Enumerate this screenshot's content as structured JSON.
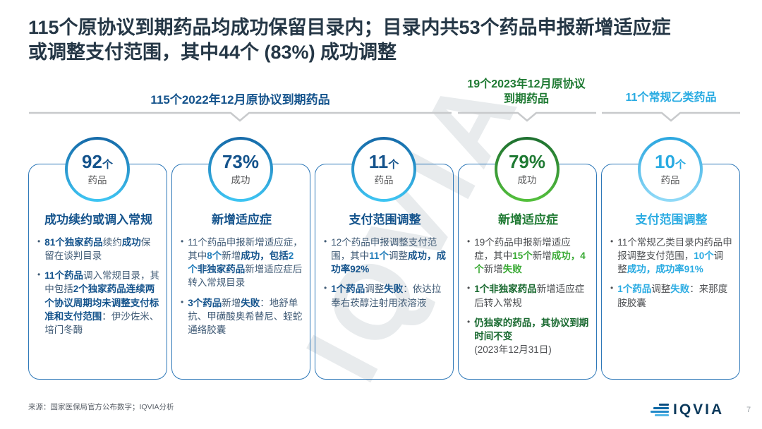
{
  "title": {
    "line1": "115个原协议到期药品均成功保留目录内；目录内共53个药品申报新增适应症",
    "line2": "或调整支付范围，其中44个 (83%) 成功调整",
    "color": "#253746"
  },
  "watermark": "IQVIA",
  "groups": [
    {
      "label_lines": [
        "115个2022年12月原协议到期药品"
      ],
      "color": "#14538c"
    },
    {
      "label_lines": [
        "19个2023年12月原协议",
        "到期药品"
      ],
      "color": "#1f7a33"
    },
    {
      "label_lines": [
        "11个常规乙类药品"
      ],
      "color": "#29abe2"
    }
  ],
  "bracket_line_color": "#c8cacc",
  "cards": [
    {
      "circle": {
        "value": "92",
        "unit": "个",
        "sub": "药品",
        "value_color": "#14538c",
        "ring_top": "#1569a8",
        "ring_bottom": "#3fc6f4"
      },
      "heading": "成功续约或调入常规",
      "heading_color": "#14538c",
      "palette": {
        "n": "#3f5a75",
        "em": "#14538c",
        "num": "#1f7cba",
        "border": "#2e78b8"
      },
      "bullets": [
        [
          {
            "t": "81个独家药品",
            "c": "em"
          },
          {
            "t": "续约",
            "c": "n"
          },
          {
            "t": "成功",
            "c": "em"
          },
          {
            "t": "保留在谈判目录",
            "c": "n"
          }
        ],
        [
          {
            "t": "11个药品",
            "c": "em"
          },
          {
            "t": "调入常规目录，其中包括",
            "c": "n"
          },
          {
            "t": "2个独家药品连续两个协议周期均未调整支付标准和支付范围",
            "c": "em"
          },
          {
            "t": "：伊沙佐米、培门冬酶",
            "c": "n"
          }
        ]
      ]
    },
    {
      "circle": {
        "value": "73%",
        "unit": "",
        "sub": "成功",
        "value_color": "#14538c",
        "ring_top": "#1569a8",
        "ring_bottom": "#3fc6f4"
      },
      "heading": "新增适应症",
      "heading_color": "#14538c",
      "palette": {
        "n": "#3f5a75",
        "em": "#14538c",
        "num": "#1f7cba",
        "border": "#2e78b8"
      },
      "bullets": [
        [
          {
            "t": "11个药品申报新增适应症，其中",
            "c": "n"
          },
          {
            "t": "8个",
            "c": "num"
          },
          {
            "t": "新增",
            "c": "n"
          },
          {
            "t": "成功，包括",
            "c": "em"
          },
          {
            "t": "2个",
            "c": "num"
          },
          {
            "t": "非独家药品",
            "c": "em"
          },
          {
            "t": "新增适应症后转入常规目录",
            "c": "n"
          }
        ],
        [
          {
            "t": "3个药品",
            "c": "em"
          },
          {
            "t": "新增",
            "c": "n"
          },
          {
            "t": "失败",
            "c": "em"
          },
          {
            "t": "：地舒单抗、甲磺酸奥希替尼、蛭蛇通络胶囊",
            "c": "n"
          }
        ]
      ]
    },
    {
      "circle": {
        "value": "11",
        "unit": "个",
        "sub": "药品",
        "value_color": "#14538c",
        "ring_top": "#1569a8",
        "ring_bottom": "#3fc6f4"
      },
      "heading": "支付范围调整",
      "heading_color": "#14538c",
      "palette": {
        "n": "#3f5a75",
        "em": "#14538c",
        "num": "#1f7cba",
        "border": "#2e78b8"
      },
      "bullets": [
        [
          {
            "t": "12个药品申报调整支付范围，其中",
            "c": "n"
          },
          {
            "t": "11个",
            "c": "num"
          },
          {
            "t": "调整",
            "c": "n"
          },
          {
            "t": "成功，成功率92%",
            "c": "em"
          }
        ],
        [
          {
            "t": "1个药品",
            "c": "em"
          },
          {
            "t": "调整",
            "c": "n"
          },
          {
            "t": "失败",
            "c": "em"
          },
          {
            "t": "：依达拉奉右莰醇注射用浓溶液",
            "c": "n"
          }
        ]
      ]
    },
    {
      "circle": {
        "value": "79%",
        "unit": "",
        "sub": "成功",
        "value_color": "#1f7a33",
        "ring_top": "#1d6f30",
        "ring_bottom": "#55c13d"
      },
      "heading": "新增适应症",
      "heading_color": "#1f7a33",
      "palette": {
        "n": "#4d4f52",
        "em": "#17682e",
        "num": "#3aaa35",
        "border": "#2e78b8"
      },
      "bullets": [
        [
          {
            "t": "19个药品申报新增适应症，其中",
            "c": "n"
          },
          {
            "t": "15个",
            "c": "num"
          },
          {
            "t": "新增",
            "c": "n"
          },
          {
            "t": "成功，4个",
            "c": "num"
          },
          {
            "t": "新增",
            "c": "n"
          },
          {
            "t": "失败",
            "c": "num"
          }
        ],
        [
          {
            "t": "1个非独家药品",
            "c": "em"
          },
          {
            "t": "新增适应症后转入常规",
            "c": "n"
          }
        ],
        [
          {
            "t": "仍独家的药品，其协议到期时间不变",
            "c": "em"
          },
          {
            "t": "(2023年12月31日)",
            "c": "n",
            "nl": true
          }
        ]
      ]
    },
    {
      "circle": {
        "value": "10",
        "unit": "个",
        "sub": "药品",
        "value_color": "#29abe2",
        "ring_top": "#2aa6df",
        "ring_bottom": "#93dbf8"
      },
      "heading": "支付范围调整",
      "heading_color": "#29abe2",
      "palette": {
        "n": "#4d4f52",
        "em": "#29abe2",
        "num": "#29abe2",
        "border": "#2e78b8"
      },
      "bullets": [
        [
          {
            "t": "11个常规乙类目录内药品申报调整支付范围，",
            "c": "n"
          },
          {
            "t": "10个",
            "c": "num"
          },
          {
            "t": "调整",
            "c": "n"
          },
          {
            "t": "成功，成功率91%",
            "c": "num"
          }
        ],
        [
          {
            "t": "1个药品",
            "c": "num"
          },
          {
            "t": "调整",
            "c": "n"
          },
          {
            "t": "失败",
            "c": "num"
          },
          {
            "t": "：来那度胺胶囊",
            "c": "n"
          }
        ]
      ]
    }
  ],
  "footer": {
    "source": "来源：国家医保局官方公布数字；IQVIA分析",
    "logo_text": "IQVIA",
    "page": "7"
  }
}
